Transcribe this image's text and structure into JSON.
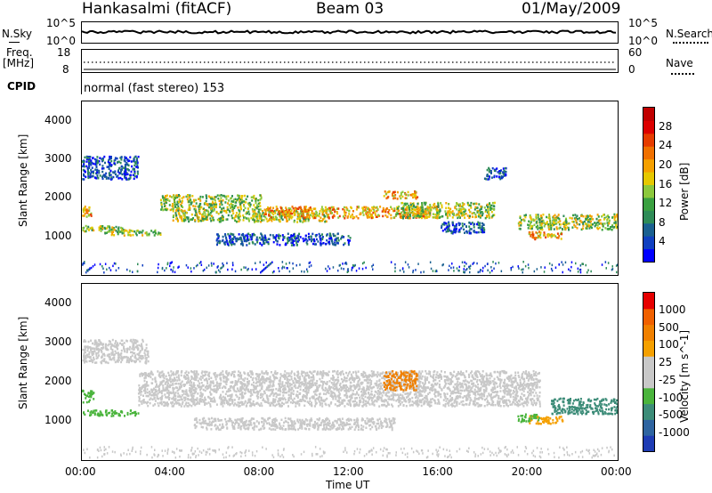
{
  "header": {
    "radar": "Hankasalmi (fitACF)",
    "beam": "Beam 03",
    "date": "01/May/2009"
  },
  "panels": {
    "nsky": {
      "label": "N.Sky",
      "top_tick": "10^5",
      "bottom_tick": "10^0",
      "right_label": "N.Search"
    },
    "freq": {
      "label_1": "Freq.",
      "label_2": "[MHz]",
      "top_tick": "18",
      "bottom_tick": "8",
      "right_top": "60",
      "right_bottom": "0",
      "right_label": "Nave"
    },
    "cpid": {
      "label": "CPID",
      "value": "normal (fast stereo) 153"
    }
  },
  "chart_data": [
    {
      "type": "heatmap",
      "name_print": "Power [dB]",
      "ylabel": "Slant Range [km]",
      "xlabel": "Time UT",
      "ylim": [
        0,
        4500
      ],
      "xlim_hours": [
        0,
        24
      ],
      "y_ticks": [
        "4000",
        "3000",
        "2000",
        "1000"
      ],
      "x_ticks": [
        "00:00",
        "04:00",
        "08:00",
        "12:00",
        "16:00",
        "20:00",
        "00:00"
      ],
      "colorbar": {
        "label": "Power [dB]",
        "ticks": [
          "28",
          "24",
          "20",
          "16",
          "12",
          "8",
          "4"
        ],
        "colors": [
          "#0000ff",
          "#1040c0",
          "#1a6090",
          "#2e8b57",
          "#3aa040",
          "#8cc83c",
          "#e6c800",
          "#f5a000",
          "#f07000",
          "#e63c00",
          "#dc0000",
          "#c00000"
        ]
      },
      "bands": [
        {
          "t0": 0.0,
          "t1": 1.8,
          "r0": 1150,
          "r1": 1300,
          "level": "mid"
        },
        {
          "t0": 1.0,
          "t1": 3.5,
          "r0": 1050,
          "r1": 1200,
          "level": "mid"
        },
        {
          "t0": 0.0,
          "t1": 0.4,
          "r0": 1500,
          "r1": 1800,
          "level": "high"
        },
        {
          "t0": 0.0,
          "t1": 2.5,
          "r0": 2500,
          "r1": 3100,
          "level": "low"
        },
        {
          "t0": 3.5,
          "t1": 8.0,
          "r0": 1700,
          "r1": 2100,
          "level": "mid"
        },
        {
          "t0": 4.0,
          "t1": 11.0,
          "r0": 1400,
          "r1": 1700,
          "level": "mid"
        },
        {
          "t0": 6.0,
          "t1": 12.0,
          "r0": 800,
          "r1": 1100,
          "level": "low"
        },
        {
          "t0": 8.0,
          "t1": 16.0,
          "r0": 1500,
          "r1": 1800,
          "level": "high"
        },
        {
          "t0": 13.5,
          "t1": 15.0,
          "r0": 2000,
          "r1": 2200,
          "level": "high"
        },
        {
          "t0": 14.0,
          "t1": 18.5,
          "r0": 1500,
          "r1": 1900,
          "level": "mid"
        },
        {
          "t0": 16.0,
          "t1": 18.0,
          "r0": 1100,
          "r1": 1400,
          "level": "low"
        },
        {
          "t0": 18.0,
          "t1": 19.0,
          "r0": 2500,
          "r1": 2800,
          "level": "low"
        },
        {
          "t0": 20.0,
          "t1": 21.5,
          "r0": 950,
          "r1": 1150,
          "level": "high"
        },
        {
          "t0": 19.5,
          "t1": 24.0,
          "r0": 1200,
          "r1": 1600,
          "level": "mid"
        }
      ]
    },
    {
      "type": "heatmap",
      "name_print": "Velocity [m s^-1]",
      "ylabel": "Slant Range [km]",
      "xlabel": "Time UT",
      "ylim": [
        0,
        4500
      ],
      "xlim_hours": [
        0,
        24
      ],
      "y_ticks": [
        "4000",
        "3000",
        "2000",
        "1000"
      ],
      "x_ticks": [
        "00:00",
        "04:00",
        "08:00",
        "12:00",
        "16:00",
        "20:00",
        "00:00"
      ],
      "colorbar": {
        "label": "Velocity [m s^-1]",
        "ticks": [
          "1000",
          "500",
          "100",
          "25",
          "-25",
          "-100",
          "-500",
          "-1000"
        ],
        "colors": [
          "#1e3cb4",
          "#2e64a0",
          "#3c8c78",
          "#4ab43c",
          "#c8c8c8",
          "#c8c8c8",
          "#f5a000",
          "#f08000",
          "#f06000",
          "#e60000"
        ]
      },
      "bands": [
        {
          "t0": 0.0,
          "t1": 2.5,
          "r0": 1150,
          "r1": 1300,
          "color": "#4ab43c"
        },
        {
          "t0": 0.0,
          "t1": 0.5,
          "r0": 1500,
          "r1": 1800,
          "color": "#4ab43c"
        },
        {
          "t0": 0.0,
          "t1": 3.0,
          "r0": 2500,
          "r1": 3100,
          "color": "#c8c8c8"
        },
        {
          "t0": 2.5,
          "t1": 20.5,
          "r0": 1400,
          "r1": 2300,
          "color": "#c8c8c8"
        },
        {
          "t0": 5.0,
          "t1": 14.0,
          "r0": 800,
          "r1": 1100,
          "color": "#c8c8c8"
        },
        {
          "t0": 13.5,
          "t1": 15.0,
          "r0": 1800,
          "r1": 2300,
          "color": "#f08000"
        },
        {
          "t0": 20.0,
          "t1": 21.5,
          "r0": 950,
          "r1": 1150,
          "color": "#f5a000"
        },
        {
          "t0": 21.0,
          "t1": 24.0,
          "r0": 1200,
          "r1": 1600,
          "color": "#3c8c78"
        },
        {
          "t0": 19.5,
          "t1": 20.5,
          "r0": 1000,
          "r1": 1200,
          "color": "#4ab43c"
        }
      ]
    }
  ]
}
